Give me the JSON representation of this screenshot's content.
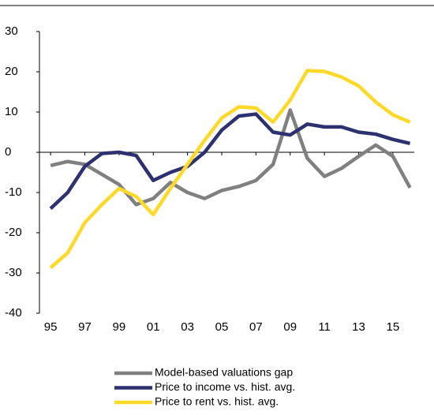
{
  "chart_data": {
    "type": "line",
    "x": [
      1995,
      1996,
      1997,
      1998,
      1999,
      2000,
      2001,
      2002,
      2003,
      2004,
      2005,
      2006,
      2007,
      2008,
      2009,
      2010,
      2011,
      2012,
      2013,
      2014,
      2015,
      2016
    ],
    "series": [
      {
        "name": "Model-based valuations gap",
        "color": "#808080",
        "values": [
          -3.3,
          -2.3,
          -3,
          -5.5,
          -8,
          -13,
          -11.5,
          -7.5,
          -10,
          -11.5,
          -9.5,
          -8.5,
          -7,
          -3,
          10.5,
          -1.5,
          -6,
          -4,
          -1,
          1.8,
          -1,
          -8.8
        ]
      },
      {
        "name": "Price to income vs. hist. avg.",
        "color": "#2e3170",
        "values": [
          -14,
          -10,
          -3.5,
          -0.3,
          0,
          -0.8,
          -7,
          -5,
          -3.5,
          0,
          5.5,
          9,
          9.5,
          5,
          4.3,
          7,
          6.3,
          6.3,
          5,
          4.5,
          3.2,
          2.2
        ]
      },
      {
        "name": "Price to rent vs. hist. avg.",
        "color": "#ffd929",
        "values": [
          -28.7,
          -25,
          -17.5,
          -13,
          -9,
          -11,
          -15.5,
          -9,
          -3,
          3,
          8.5,
          11.3,
          11,
          7.5,
          13,
          20.3,
          20.1,
          18.7,
          16.5,
          12.5,
          9.3,
          7.5
        ]
      }
    ],
    "xlim": [
      1994.35,
      2016.25
    ],
    "xticks": [
      {
        "value": 1995,
        "label": "95"
      },
      {
        "value": 1997,
        "label": "97"
      },
      {
        "value": 1999,
        "label": "99"
      },
      {
        "value": 2001,
        "label": "01"
      },
      {
        "value": 2003,
        "label": "03"
      },
      {
        "value": 2005,
        "label": "05"
      },
      {
        "value": 2007,
        "label": "07"
      },
      {
        "value": 2009,
        "label": "09"
      },
      {
        "value": 2011,
        "label": "11"
      },
      {
        "value": 2013,
        "label": "13"
      },
      {
        "value": 2015,
        "label": "15"
      }
    ],
    "ylim": [
      -40,
      30
    ],
    "yticks": [
      -40,
      -30,
      -20,
      -10,
      0,
      10,
      20,
      30
    ]
  }
}
